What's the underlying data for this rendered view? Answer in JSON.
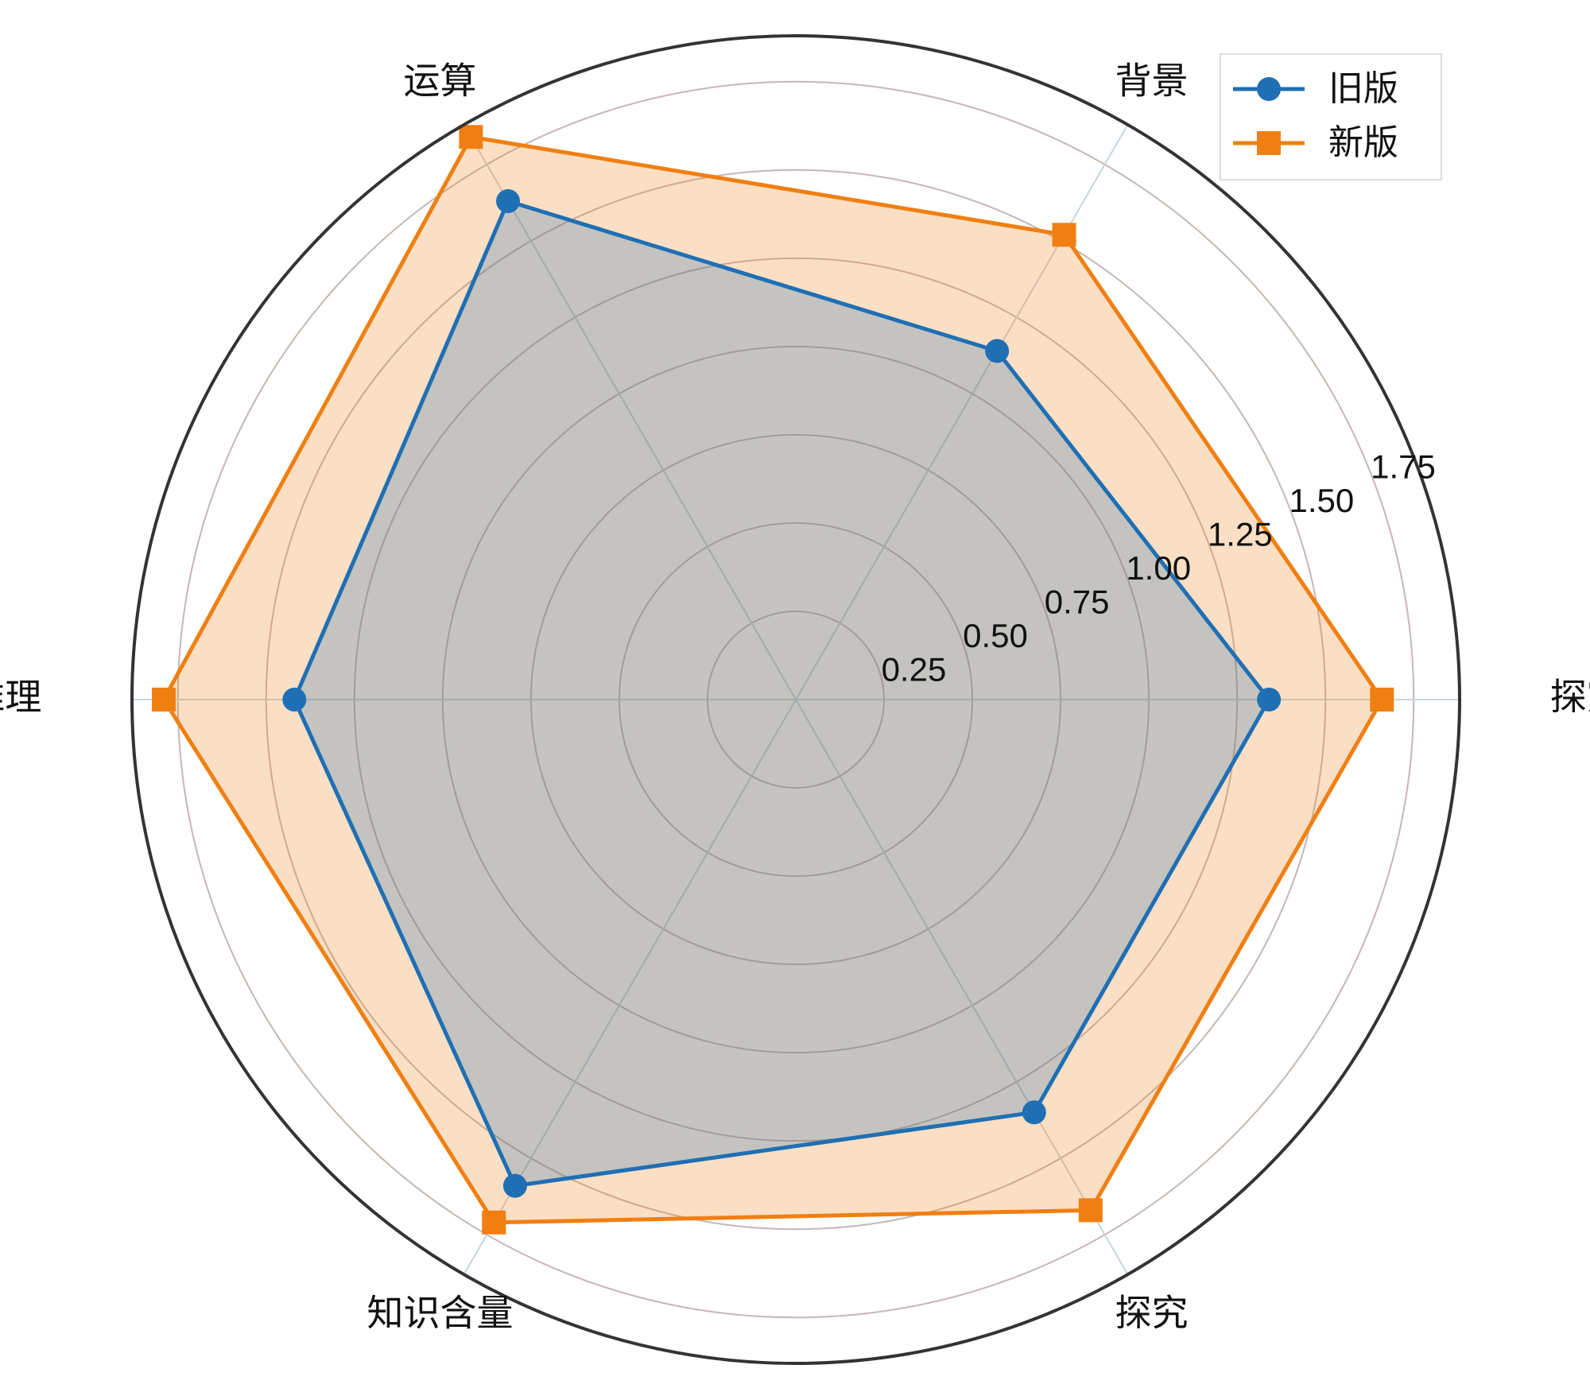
{
  "chart_data": {
    "type": "radar",
    "categories": [
      "探究",
      "背景",
      "运算",
      "推理",
      "知识含量",
      "探究"
    ],
    "series": [
      {
        "name": "旧版",
        "color": "#1f6fb4",
        "marker": "circle",
        "values": [
          1.34,
          1.14,
          1.63,
          1.42,
          1.59,
          1.35
        ]
      },
      {
        "name": "新版",
        "color": "#f07f12",
        "marker": "square",
        "values": [
          1.66,
          1.52,
          1.84,
          1.79,
          1.71,
          1.67
        ]
      }
    ],
    "ylim": [
      0,
      1.88
    ],
    "yticks": [
      0.25,
      {
        "value": 0.5,
        "label": "0.50"
      },
      0.75,
      {
        "value": 1.0,
        "label": "1.00"
      },
      1.25,
      {
        "value": 1.5,
        "label": "1.50"
      },
      1.75
    ],
    "grid": true,
    "legend": "upper right"
  }
}
